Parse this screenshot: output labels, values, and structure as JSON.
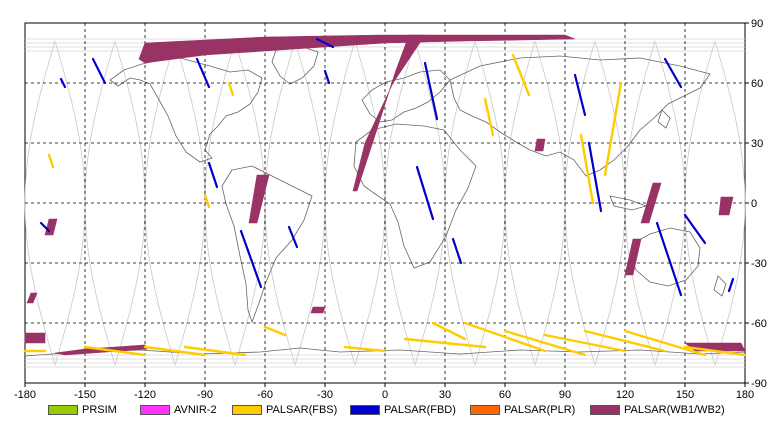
{
  "map": {
    "lon_ticks": [
      "-180",
      "-150",
      "-120",
      "-90",
      "-60",
      "-30",
      "0",
      "30",
      "60",
      "90",
      "120",
      "150",
      "180"
    ],
    "lat_ticks": [
      "90",
      "60",
      "30",
      "0",
      "-30",
      "-60",
      "-90"
    ],
    "grid": true,
    "lon_range": [
      -180,
      180
    ],
    "lat_range": [
      -90,
      90
    ]
  },
  "legend": [
    {
      "label": "PRSIM",
      "color": "#99cc00"
    },
    {
      "label": "AVNIR-2",
      "color": "#ff33ff"
    },
    {
      "label": "PALSAR(FBS)",
      "color": "#ffcc00"
    },
    {
      "label": "PALSAR(FBD)",
      "color": "#0000cc"
    },
    {
      "label": "PALSAR(PLR)",
      "color": "#ff6600"
    },
    {
      "label": "PALSAR(WB1/WB2)",
      "color": "#993366"
    }
  ],
  "footprints": {
    "wb": [
      {
        "label": "arctic-band",
        "color": "#993366",
        "poly": [
          [
            -120,
            80
          ],
          [
            -60,
            83
          ],
          [
            0,
            84
          ],
          [
            60,
            84
          ],
          [
            90,
            84
          ],
          [
            95,
            82
          ],
          [
            40,
            81
          ],
          [
            0,
            80
          ],
          [
            -30,
            78
          ],
          [
            -60,
            76
          ],
          [
            -90,
            74
          ],
          [
            -120,
            70
          ],
          [
            -123,
            72
          ]
        ]
      },
      {
        "label": "atlantic-swath",
        "color": "#993366",
        "poly": [
          [
            12,
            84
          ],
          [
            20,
            84
          ],
          [
            4,
            60
          ],
          [
            -10,
            30
          ],
          [
            -16,
            6
          ],
          [
            -14,
            6
          ],
          [
            -3,
            40
          ],
          [
            5,
            65
          ]
        ]
      },
      {
        "label": "south-america-swath",
        "color": "#993366",
        "poly": [
          [
            -64,
            14
          ],
          [
            -58,
            14
          ],
          [
            -64,
            -10
          ],
          [
            -68,
            -10
          ]
        ]
      },
      {
        "label": "indonesia-swath",
        "color": "#993366",
        "poly": [
          [
            134,
            10
          ],
          [
            138,
            10
          ],
          [
            132,
            -10
          ],
          [
            128,
            -10
          ]
        ]
      },
      {
        "label": "pacific-left",
        "color": "#993366",
        "poly": [
          [
            -180,
            -65
          ],
          [
            -170,
            -65
          ],
          [
            -170,
            -70
          ],
          [
            -180,
            -70
          ]
        ]
      },
      {
        "label": "antarctic-band",
        "color": "#993366",
        "poly": [
          [
            -150,
            -73
          ],
          [
            -120,
            -71
          ],
          [
            -119,
            -73
          ],
          [
            -160,
            -76
          ],
          [
            -165,
            -75
          ]
        ]
      },
      {
        "label": "antarctic-right",
        "color": "#993366",
        "poly": [
          [
            150,
            -70
          ],
          [
            178,
            -70
          ],
          [
            180,
            -74
          ],
          [
            155,
            -74
          ]
        ]
      },
      {
        "label": "africa-small",
        "color": "#993366",
        "poly": [
          [
            76,
            32
          ],
          [
            80,
            32
          ],
          [
            79,
            26
          ],
          [
            75,
            26
          ]
        ]
      },
      {
        "label": "australia-right",
        "color": "#993366",
        "poly": [
          [
            168,
            3
          ],
          [
            174,
            3
          ],
          [
            172,
            -6
          ],
          [
            167,
            -6
          ]
        ]
      },
      {
        "label": "pacific-small",
        "color": "#993366",
        "poly": [
          [
            -177,
            -45
          ],
          [
            -174,
            -45
          ],
          [
            -176,
            -50
          ],
          [
            -179,
            -50
          ]
        ]
      },
      {
        "label": "ocean-south",
        "color": "#993366",
        "poly": [
          [
            -36,
            -52
          ],
          [
            -30,
            -52
          ],
          [
            -31,
            -55
          ],
          [
            -37,
            -55
          ]
        ]
      },
      {
        "label": "australia-left",
        "color": "#993366",
        "poly": [
          [
            124,
            -18
          ],
          [
            128,
            -18
          ],
          [
            124,
            -36
          ],
          [
            120,
            -36
          ]
        ]
      },
      {
        "label": "pacific-southwest",
        "color": "#993366",
        "poly": [
          [
            -168,
            -8
          ],
          [
            -164,
            -8
          ],
          [
            -166,
            -16
          ],
          [
            -170,
            -16
          ]
        ]
      }
    ],
    "fbd": [
      {
        "label": "fbd-1",
        "color": "#0000cc",
        "line": [
          [
            -146,
            72
          ],
          [
            -140,
            60
          ]
        ]
      },
      {
        "label": "fbd-2",
        "color": "#0000cc",
        "line": [
          [
            -94,
            72
          ],
          [
            -88,
            58
          ]
        ]
      },
      {
        "label": "fbd-3",
        "color": "#0000cc",
        "line": [
          [
            -88,
            20
          ],
          [
            -84,
            8
          ]
        ]
      },
      {
        "label": "fbd-4",
        "color": "#0000cc",
        "line": [
          [
            -72,
            -14
          ],
          [
            -62,
            -42
          ]
        ]
      },
      {
        "label": "fbd-5",
        "color": "#0000cc",
        "line": [
          [
            -48,
            -12
          ],
          [
            -44,
            -22
          ]
        ]
      },
      {
        "label": "fbd-6",
        "color": "#0000cc",
        "line": [
          [
            16,
            18
          ],
          [
            24,
            -8
          ]
        ]
      },
      {
        "label": "fbd-7",
        "color": "#0000cc",
        "line": [
          [
            34,
            -18
          ],
          [
            38,
            -30
          ]
        ]
      },
      {
        "label": "fbd-8",
        "color": "#0000cc",
        "line": [
          [
            20,
            70
          ],
          [
            26,
            42
          ]
        ]
      },
      {
        "label": "fbd-9",
        "color": "#0000cc",
        "line": [
          [
            95,
            64
          ],
          [
            100,
            44
          ]
        ]
      },
      {
        "label": "fbd-10",
        "color": "#0000cc",
        "line": [
          [
            102,
            30
          ],
          [
            108,
            -4
          ]
        ]
      },
      {
        "label": "fbd-11",
        "color": "#0000cc",
        "line": [
          [
            136,
            -10
          ],
          [
            148,
            -46
          ]
        ]
      },
      {
        "label": "fbd-12",
        "color": "#0000cc",
        "line": [
          [
            140,
            72
          ],
          [
            148,
            58
          ]
        ]
      },
      {
        "label": "fbd-13",
        "color": "#0000cc",
        "line": [
          [
            -34,
            82
          ],
          [
            -26,
            78
          ]
        ]
      },
      {
        "label": "fbd-14",
        "color": "#0000cc",
        "line": [
          [
            -162,
            62
          ],
          [
            -160,
            58
          ]
        ]
      },
      {
        "label": "fbd-15",
        "color": "#0000cc",
        "line": [
          [
            -172,
            -10
          ],
          [
            -168,
            -14
          ]
        ]
      },
      {
        "label": "fbd-16",
        "color": "#0000cc",
        "line": [
          [
            174,
            -38
          ],
          [
            172,
            -44
          ]
        ]
      },
      {
        "label": "fbd-17",
        "color": "#0000cc",
        "line": [
          [
            -30,
            66
          ],
          [
            -28,
            60
          ]
        ]
      },
      {
        "label": "fbd-18",
        "color": "#0000cc",
        "line": [
          [
            150,
            -6
          ],
          [
            160,
            -20
          ]
        ]
      }
    ],
    "fbs": [
      {
        "label": "fbs-1",
        "color": "#ffcc00",
        "line": [
          [
            64,
            74
          ],
          [
            72,
            54
          ]
        ]
      },
      {
        "label": "fbs-2",
        "color": "#ffcc00",
        "line": [
          [
            118,
            60
          ],
          [
            110,
            14
          ]
        ]
      },
      {
        "label": "fbs-3",
        "color": "#ffcc00",
        "line": [
          [
            98,
            34
          ],
          [
            104,
            0
          ]
        ]
      },
      {
        "label": "fbs-4",
        "color": "#ffcc00",
        "line": [
          [
            50,
            52
          ],
          [
            54,
            34
          ]
        ]
      },
      {
        "label": "fbs-5",
        "color": "#ffcc00",
        "line": [
          [
            -78,
            60
          ],
          [
            -76,
            54
          ]
        ]
      },
      {
        "label": "fbs-6",
        "color": "#ffcc00",
        "line": [
          [
            -168,
            24
          ],
          [
            -166,
            18
          ]
        ]
      },
      {
        "label": "fbs-7",
        "color": "#ffcc00",
        "line": [
          [
            -90,
            4
          ],
          [
            -88,
            -2
          ]
        ]
      },
      {
        "label": "fbs-8",
        "color": "#ffcc00",
        "line": [
          [
            24,
            -60
          ],
          [
            40,
            -68
          ]
        ]
      },
      {
        "label": "fbs-9",
        "color": "#ffcc00",
        "line": [
          [
            10,
            -68
          ],
          [
            50,
            -72
          ]
        ]
      },
      {
        "label": "fbs-10",
        "color": "#ffcc00",
        "line": [
          [
            40,
            -60
          ],
          [
            80,
            -74
          ]
        ]
      },
      {
        "label": "fbs-11",
        "color": "#ffcc00",
        "line": [
          [
            60,
            -64
          ],
          [
            100,
            -76
          ]
        ]
      },
      {
        "label": "fbs-12",
        "color": "#ffcc00",
        "line": [
          [
            80,
            -66
          ],
          [
            120,
            -74
          ]
        ]
      },
      {
        "label": "fbs-13",
        "color": "#ffcc00",
        "line": [
          [
            100,
            -64
          ],
          [
            140,
            -74
          ]
        ]
      },
      {
        "label": "fbs-14",
        "color": "#ffcc00",
        "line": [
          [
            120,
            -64
          ],
          [
            160,
            -76
          ]
        ]
      },
      {
        "label": "fbs-15",
        "color": "#ffcc00",
        "line": [
          [
            -120,
            -72
          ],
          [
            -90,
            -76
          ]
        ]
      },
      {
        "label": "fbs-16",
        "color": "#ffcc00",
        "line": [
          [
            -100,
            -72
          ],
          [
            -70,
            -76
          ]
        ]
      },
      {
        "label": "fbs-17",
        "color": "#ffcc00",
        "line": [
          [
            -150,
            -72
          ],
          [
            -120,
            -76
          ]
        ]
      },
      {
        "label": "fbs-18",
        "color": "#ffcc00",
        "line": [
          [
            -60,
            -62
          ],
          [
            -50,
            -66
          ]
        ]
      },
      {
        "label": "fbs-19",
        "color": "#ffcc00",
        "line": [
          [
            150,
            -72
          ],
          [
            180,
            -76
          ]
        ]
      },
      {
        "label": "fbs-20",
        "color": "#ffcc00",
        "line": [
          [
            -180,
            -74
          ],
          [
            -170,
            -74
          ]
        ]
      },
      {
        "label": "fbs-21",
        "color": "#ffcc00",
        "line": [
          [
            -20,
            -72
          ],
          [
            0,
            -74
          ]
        ]
      }
    ]
  }
}
